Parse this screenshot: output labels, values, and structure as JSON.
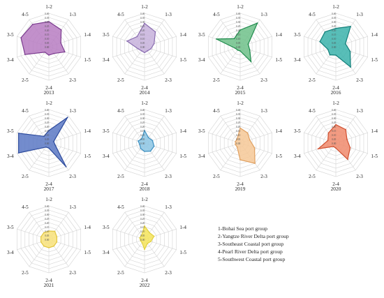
{
  "chart_data": [
    {
      "type": "radar",
      "year_label": "2013",
      "axes": [
        "1-2",
        "1-3",
        "1-4",
        "1-5",
        "2-3",
        "2-4",
        "2-5",
        "3-4",
        "3-5",
        "4-5"
      ],
      "ticks": [
        "0.40",
        "0.35",
        "0.30",
        "0.25",
        "0.20",
        "0.15",
        "0.10",
        "0.05",
        "0.00"
      ],
      "values": [
        0.3,
        0.25,
        0.15,
        0.2,
        0.1,
        0.1,
        0.08,
        0.3,
        0.35,
        0.33
      ],
      "color": "#7b3b8f",
      "fill": "#b77dc2"
    },
    {
      "type": "radar",
      "year_label": "2014",
      "axes": [
        "1-2",
        "1-3",
        "1-4",
        "1-5",
        "2-3",
        "2-4",
        "2-5",
        "3-4",
        "3-5",
        "4-5"
      ],
      "ticks": [
        "0.40",
        "0.35",
        "0.30",
        "0.25",
        "0.20",
        "0.15",
        "0.10",
        "0.05",
        "0.00"
      ],
      "values": [
        0.28,
        0.22,
        0.12,
        0.08,
        0.06,
        0.07,
        0.06,
        0.08,
        0.22,
        0.15
      ],
      "color": "#8a6db0",
      "fill": "#c7b2dc"
    },
    {
      "type": "radar",
      "year_label": "2015",
      "axes": [
        "1-2",
        "1-3",
        "1-4",
        "1-5",
        "2-3",
        "2-4",
        "2-5",
        "3-4",
        "3-5",
        "4-5"
      ],
      "ticks": [
        "0.40",
        "0.35",
        "0.30",
        "0.25",
        "0.20",
        "0.15",
        "0.10",
        "0.05",
        "0.00"
      ],
      "values": [
        0.2,
        0.35,
        0.1,
        0.12,
        0.22,
        0.05,
        0.05,
        0.06,
        0.3,
        0.12
      ],
      "color": "#1f8a4c",
      "fill": "#6ec18a"
    },
    {
      "type": "radar",
      "year_label": "2016",
      "axes": [
        "1-2",
        "1-3",
        "1-4",
        "1-5",
        "2-3",
        "2-4",
        "2-5",
        "3-4",
        "3-5",
        "4-5"
      ],
      "ticks": [
        "0.40",
        "0.35",
        "0.30",
        "0.25",
        "0.20",
        "0.15",
        "0.10",
        "0.05",
        "0.00"
      ],
      "values": [
        0.22,
        0.3,
        0.12,
        0.18,
        0.3,
        0.1,
        0.12,
        0.1,
        0.2,
        0.22
      ],
      "color": "#137f7a",
      "fill": "#3bb3ac"
    },
    {
      "type": "radar",
      "year_label": "2017",
      "axes": [
        "1-2",
        "1-3",
        "1-4",
        "1-5",
        "2-3",
        "2-4",
        "2-5",
        "3-4",
        "3-5",
        "4-5"
      ],
      "ticks": [
        "0.40",
        "0.35",
        "0.30",
        "0.25",
        "0.20",
        "0.15",
        "0.10",
        "0.05",
        "0.00"
      ],
      "values": [
        0.15,
        0.38,
        0.06,
        0.08,
        0.35,
        0.06,
        0.06,
        0.38,
        0.38,
        0.1
      ],
      "color": "#2c4a9c",
      "fill": "#5a78c4"
    },
    {
      "type": "radar",
      "year_label": "2018",
      "axes": [
        "1-2",
        "1-3",
        "1-4",
        "1-5",
        "2-3",
        "2-4",
        "2-5",
        "3-4",
        "3-5",
        "4-5"
      ],
      "ticks": [
        "0.40",
        "0.35",
        "0.30",
        "0.25",
        "0.20",
        "0.15",
        "0.10",
        "0.05",
        "0.00"
      ],
      "values": [
        0.15,
        0.08,
        0.1,
        0.12,
        0.12,
        0.1,
        0.08,
        0.06,
        0.08,
        0.06
      ],
      "color": "#3d8fc0",
      "fill": "#8cc6e4"
    },
    {
      "type": "radar",
      "year_label": "2019",
      "axes": [
        "1-2",
        "1-3",
        "1-4",
        "1-5",
        "2-3",
        "2-4",
        "2-5",
        "3-4",
        "3-5",
        "4-5"
      ],
      "ticks": [
        "0.40",
        "0.35",
        "0.30",
        "0.25",
        "0.20",
        "0.15",
        "0.10",
        "0.05",
        "0.00"
      ],
      "values": [
        0.18,
        0.15,
        0.12,
        0.18,
        0.3,
        0.2,
        0.06,
        0.06,
        0.06,
        0.06
      ],
      "color": "#e0a060",
      "fill": "#f6c896"
    },
    {
      "type": "radar",
      "year_label": "2020",
      "axes": [
        "1-2",
        "1-3",
        "1-4",
        "1-5",
        "2-3",
        "2-4",
        "2-5",
        "3-4",
        "3-5",
        "4-5"
      ],
      "ticks": [
        "0.40",
        "0.35",
        "0.30",
        "0.25",
        "0.20",
        "0.15",
        "0.10",
        "0.05",
        "0.00"
      ],
      "values": [
        0.22,
        0.2,
        0.14,
        0.18,
        0.24,
        0.06,
        0.05,
        0.22,
        0.1,
        0.15
      ],
      "color": "#d05030",
      "fill": "#f08a6c"
    },
    {
      "type": "radar",
      "year_label": "2021",
      "axes": [
        "1-2",
        "1-3",
        "1-4",
        "1-5",
        "2-3",
        "2-4",
        "2-5",
        "3-4",
        "3-5",
        "4-5"
      ],
      "ticks": [
        "0.40",
        "0.35",
        "0.30",
        "0.25",
        "0.20",
        "0.15",
        "0.10",
        "0.05",
        "0.00"
      ],
      "values": [
        0.1,
        0.12,
        0.1,
        0.1,
        0.1,
        0.1,
        0.1,
        0.1,
        0.1,
        0.1
      ],
      "color": "#e2c640",
      "fill": "#f8e27a"
    },
    {
      "type": "radar",
      "year_label": "2022",
      "axes": [
        "1-2",
        "1-3",
        "1-4",
        "1-5",
        "2-3",
        "2-4",
        "2-5",
        "3-4",
        "3-5",
        "4-5"
      ],
      "ticks": [
        "0.40",
        "0.35",
        "0.30",
        "0.25",
        "0.20",
        "0.15",
        "0.10",
        "0.05",
        "0.00"
      ],
      "values": [
        0.16,
        0.1,
        0.12,
        0.08,
        0.06,
        0.12,
        0.05,
        0.05,
        0.06,
        0.06
      ],
      "color": "#e2d040",
      "fill": "#f5e45a"
    }
  ],
  "legend": [
    "1-Bohai Sea port group",
    "2-Yangtze River Delta port group",
    "3-Southeast Coastal port group",
    "4-Pearl River Delta port group",
    "5-Southwest Coastal port group"
  ]
}
